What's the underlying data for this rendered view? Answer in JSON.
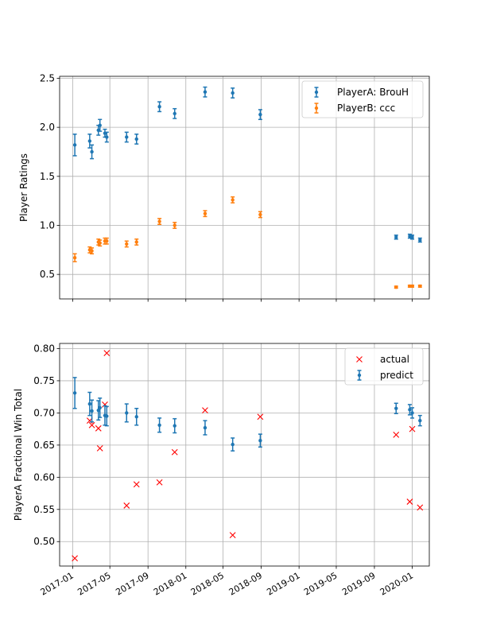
{
  "chart_data": [
    {
      "type": "scatter",
      "title": "",
      "xlabel": "",
      "ylabel": "Player Ratings",
      "x_axis": {
        "kind": "date",
        "range": [
          "2016-11-20",
          "2020-02-25"
        ],
        "ticks": [
          "2017-01-01",
          "2017-05-01",
          "2017-09-01",
          "2018-01-01",
          "2018-05-01",
          "2018-09-01",
          "2019-01-01",
          "2019-05-01",
          "2019-09-01",
          "2020-01-01"
        ],
        "tick_labels_shown": false
      },
      "ylim": [
        0.25,
        2.52
      ],
      "y_ticks": [
        "0.5",
        "1.0",
        "1.5",
        "2.0",
        "2.5"
      ],
      "grid": true,
      "legend": {
        "placement": "top-right"
      },
      "series": [
        {
          "name": "PlayerA: BrouH",
          "color": "#1f77b4",
          "marker": "errorbar-dot",
          "points": [
            {
              "x": "2017-01-08",
              "y": 1.82,
              "err": 0.11
            },
            {
              "x": "2017-02-25",
              "y": 1.86,
              "err": 0.07
            },
            {
              "x": "2017-03-04",
              "y": 1.75,
              "err": 0.07
            },
            {
              "x": "2017-03-25",
              "y": 1.97,
              "err": 0.05
            },
            {
              "x": "2017-03-30",
              "y": 2.02,
              "err": 0.06
            },
            {
              "x": "2017-04-15",
              "y": 1.94,
              "err": 0.04
            },
            {
              "x": "2017-04-21",
              "y": 1.9,
              "err": 0.05
            },
            {
              "x": "2017-06-24",
              "y": 1.9,
              "err": 0.05
            },
            {
              "x": "2017-07-26",
              "y": 1.88,
              "err": 0.05
            },
            {
              "x": "2017-10-08",
              "y": 2.21,
              "err": 0.05
            },
            {
              "x": "2017-11-26",
              "y": 2.14,
              "err": 0.05
            },
            {
              "x": "2018-03-04",
              "y": 2.36,
              "err": 0.05
            },
            {
              "x": "2018-06-01",
              "y": 2.35,
              "err": 0.05
            },
            {
              "x": "2018-08-29",
              "y": 2.13,
              "err": 0.05
            },
            {
              "x": "2019-11-10",
              "y": 0.88,
              "err": 0.02
            },
            {
              "x": "2019-12-24",
              "y": 0.89,
              "err": 0.02
            },
            {
              "x": "2020-01-01",
              "y": 0.88,
              "err": 0.02
            },
            {
              "x": "2020-01-26",
              "y": 0.85,
              "err": 0.02
            }
          ]
        },
        {
          "name": "PlayerB: ccc",
          "color": "#ff7f0e",
          "marker": "errorbar-dot",
          "points": [
            {
              "x": "2017-01-08",
              "y": 0.67,
              "err": 0.04
            },
            {
              "x": "2017-02-25",
              "y": 0.75,
              "err": 0.03
            },
            {
              "x": "2017-03-04",
              "y": 0.74,
              "err": 0.03
            },
            {
              "x": "2017-03-25",
              "y": 0.83,
              "err": 0.03
            },
            {
              "x": "2017-03-30",
              "y": 0.82,
              "err": 0.03
            },
            {
              "x": "2017-04-15",
              "y": 0.84,
              "err": 0.03
            },
            {
              "x": "2017-04-21",
              "y": 0.84,
              "err": 0.03
            },
            {
              "x": "2017-06-24",
              "y": 0.81,
              "err": 0.03
            },
            {
              "x": "2017-07-26",
              "y": 0.83,
              "err": 0.03
            },
            {
              "x": "2017-10-08",
              "y": 1.04,
              "err": 0.03
            },
            {
              "x": "2017-11-26",
              "y": 1.0,
              "err": 0.03
            },
            {
              "x": "2018-03-04",
              "y": 1.12,
              "err": 0.03
            },
            {
              "x": "2018-06-01",
              "y": 1.26,
              "err": 0.03
            },
            {
              "x": "2018-08-29",
              "y": 1.11,
              "err": 0.03
            },
            {
              "x": "2019-11-10",
              "y": 0.37,
              "err": 0.01
            },
            {
              "x": "2019-12-24",
              "y": 0.38,
              "err": 0.01
            },
            {
              "x": "2020-01-01",
              "y": 0.38,
              "err": 0.01
            },
            {
              "x": "2020-01-26",
              "y": 0.38,
              "err": 0.01
            }
          ]
        }
      ]
    },
    {
      "type": "scatter",
      "title": "",
      "xlabel": "",
      "ylabel": "PlayerA Fractional Win Total",
      "x_axis": {
        "kind": "date",
        "range": [
          "2016-11-20",
          "2020-02-25"
        ],
        "ticks": [
          "2017-01-01",
          "2017-05-01",
          "2017-09-01",
          "2018-01-01",
          "2018-05-01",
          "2018-09-01",
          "2019-01-01",
          "2019-05-01",
          "2019-09-01",
          "2020-01-01"
        ],
        "tick_labels": [
          "2017-01",
          "2017-05",
          "2017-09",
          "2018-01",
          "2018-05",
          "2018-09",
          "2019-01",
          "2019-05",
          "2019-09",
          "2020-01"
        ],
        "tick_labels_shown": true
      },
      "ylim": [
        0.462,
        0.808
      ],
      "y_ticks": [
        "0.50",
        "0.55",
        "0.60",
        "0.65",
        "0.70",
        "0.75",
        "0.80"
      ],
      "grid": true,
      "legend": {
        "placement": "top-right"
      },
      "series": [
        {
          "name": "actual",
          "color": "#ff0000",
          "marker": "x",
          "points": [
            {
              "x": "2017-01-08",
              "y": 0.474
            },
            {
              "x": "2017-02-25",
              "y": 0.688
            },
            {
              "x": "2017-03-04",
              "y": 0.681
            },
            {
              "x": "2017-03-25",
              "y": 0.676
            },
            {
              "x": "2017-03-30",
              "y": 0.645
            },
            {
              "x": "2017-04-15",
              "y": 0.713
            },
            {
              "x": "2017-04-21",
              "y": 0.793
            },
            {
              "x": "2017-06-24",
              "y": 0.556
            },
            {
              "x": "2017-07-26",
              "y": 0.589
            },
            {
              "x": "2017-10-08",
              "y": 0.592
            },
            {
              "x": "2017-11-26",
              "y": 0.639
            },
            {
              "x": "2018-03-04",
              "y": 0.704
            },
            {
              "x": "2018-06-01",
              "y": 0.51
            },
            {
              "x": "2018-08-29",
              "y": 0.694
            },
            {
              "x": "2019-11-10",
              "y": 0.666
            },
            {
              "x": "2019-12-24",
              "y": 0.562
            },
            {
              "x": "2020-01-01",
              "y": 0.675
            },
            {
              "x": "2020-01-26",
              "y": 0.553
            }
          ]
        },
        {
          "name": "predict",
          "color": "#1f77b4",
          "marker": "errorbar-dot",
          "points": [
            {
              "x": "2017-01-08",
              "y": 0.731,
              "err": 0.024
            },
            {
              "x": "2017-02-25",
              "y": 0.714,
              "err": 0.018
            },
            {
              "x": "2017-03-04",
              "y": 0.703,
              "err": 0.017
            },
            {
              "x": "2017-03-25",
              "y": 0.704,
              "err": 0.015
            },
            {
              "x": "2017-03-30",
              "y": 0.708,
              "err": 0.015
            },
            {
              "x": "2017-04-15",
              "y": 0.696,
              "err": 0.015
            },
            {
              "x": "2017-04-21",
              "y": 0.695,
              "err": 0.015
            },
            {
              "x": "2017-06-24",
              "y": 0.7,
              "err": 0.014
            },
            {
              "x": "2017-07-26",
              "y": 0.694,
              "err": 0.013
            },
            {
              "x": "2017-10-08",
              "y": 0.681,
              "err": 0.011
            },
            {
              "x": "2017-11-26",
              "y": 0.68,
              "err": 0.011
            },
            {
              "x": "2018-03-04",
              "y": 0.677,
              "err": 0.011
            },
            {
              "x": "2018-06-01",
              "y": 0.651,
              "err": 0.01
            },
            {
              "x": "2018-08-29",
              "y": 0.657,
              "err": 0.01
            },
            {
              "x": "2019-11-10",
              "y": 0.707,
              "err": 0.008
            },
            {
              "x": "2019-12-24",
              "y": 0.705,
              "err": 0.008
            },
            {
              "x": "2020-01-01",
              "y": 0.7,
              "err": 0.008
            },
            {
              "x": "2020-01-26",
              "y": 0.688,
              "err": 0.008
            }
          ]
        }
      ]
    }
  ]
}
